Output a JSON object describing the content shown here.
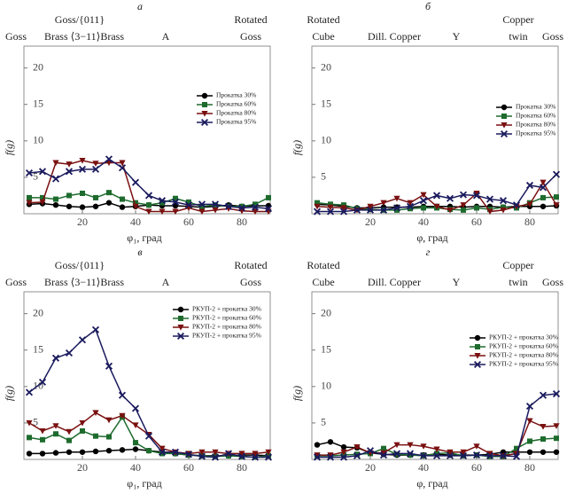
{
  "chart_data": [
    {
      "type": "line",
      "title": "а",
      "xlabel": "φ₁, град",
      "ylabel": "f(g)",
      "annotations": [
        "Goss/{011}",
        "Goss",
        "Brass ⟨3−11⟩Brass",
        "A",
        "Rotated",
        "Goss"
      ],
      "x": [
        0,
        5,
        10,
        15,
        20,
        25,
        30,
        35,
        40,
        45,
        50,
        55,
        60,
        65,
        70,
        75,
        80,
        85,
        90
      ],
      "xlim": [
        0,
        90
      ],
      "xticks": [
        20,
        40,
        60,
        80
      ],
      "ylim": [
        0,
        23
      ],
      "yticks": [
        5,
        10,
        15,
        20
      ],
      "series": [
        {
          "name": "Прокатка 30%",
          "color": "#000000",
          "marker": "circle",
          "values": [
            1.3,
            1.4,
            1.2,
            1.0,
            0.9,
            1.0,
            1.5,
            0.9,
            1.0,
            1.2,
            1.1,
            1.1,
            1.0,
            0.9,
            1.0,
            1.2,
            1.0,
            1.1,
            1.1
          ]
        },
        {
          "name": "Прокатка 60%",
          "color": "#1e6b2e",
          "marker": "square",
          "values": [
            2.2,
            2.2,
            2.0,
            2.5,
            2.8,
            2.2,
            2.9,
            2.0,
            1.5,
            1.2,
            1.5,
            2.1,
            1.6,
            1.0,
            1.2,
            1.0,
            1.0,
            1.3,
            2.2
          ]
        },
        {
          "name": "Прокатка 80%",
          "color": "#7a1010",
          "marker": "triangle",
          "values": [
            1.5,
            1.6,
            7.0,
            6.8,
            7.3,
            6.9,
            7.0,
            7.0,
            1.0,
            0.3,
            0.3,
            0.3,
            0.8,
            0.3,
            0.5,
            0.7,
            0.4,
            0.3,
            0.3
          ]
        },
        {
          "name": "Прокатка 95%",
          "color": "#1a1a5e",
          "marker": "x",
          "values": [
            5.6,
            5.8,
            4.8,
            5.8,
            6.1,
            6.1,
            7.5,
            6.3,
            4.3,
            2.5,
            1.8,
            1.6,
            1.2,
            1.3,
            1.3,
            1.0,
            0.8,
            0.9,
            0.7
          ]
        }
      ]
    },
    {
      "type": "line",
      "title": "б",
      "xlabel": "φ, град",
      "ylabel": "f(g)",
      "annotations": [
        "Rotated",
        "Cube",
        "Dill. Copper",
        "Y",
        "Copper",
        "twin",
        "Goss"
      ],
      "x": [
        0,
        5,
        10,
        15,
        20,
        25,
        30,
        35,
        40,
        45,
        50,
        55,
        60,
        65,
        70,
        75,
        80,
        85,
        90
      ],
      "xlim": [
        0,
        90
      ],
      "xticks": [
        20,
        40,
        60,
        80
      ],
      "ylim": [
        0,
        23
      ],
      "yticks": [
        5,
        10,
        15,
        20
      ],
      "series": [
        {
          "name": "Прокатка 30%",
          "color": "#000000",
          "marker": "circle",
          "values": [
            1.3,
            1.2,
            1.0,
            0.8,
            0.8,
            0.9,
            0.9,
            0.9,
            1.0,
            1.0,
            1.0,
            0.9,
            1.0,
            1.0,
            0.9,
            1.0,
            1.0,
            1.0,
            1.1
          ]
        },
        {
          "name": "Прокатка 60%",
          "color": "#1e6b2e",
          "marker": "square",
          "values": [
            1.5,
            1.3,
            1.2,
            0.7,
            0.6,
            0.5,
            0.5,
            0.7,
            0.8,
            0.8,
            0.6,
            0.5,
            0.8,
            0.6,
            0.9,
            0.8,
            1.5,
            2.2,
            2.3
          ]
        },
        {
          "name": "Прокатка 80%",
          "color": "#7a1010",
          "marker": "triangle",
          "values": [
            1.0,
            0.9,
            0.8,
            0.5,
            1.0,
            1.5,
            2.1,
            1.5,
            2.6,
            1.0,
            0.5,
            1.2,
            2.8,
            0.3,
            0.5,
            1.0,
            1.3,
            4.3,
            1.2
          ]
        },
        {
          "name": "Прокатка 95%",
          "color": "#1a1a5e",
          "marker": "x",
          "values": [
            0.3,
            0.3,
            0.3,
            0.5,
            0.5,
            0.5,
            0.8,
            1.0,
            1.8,
            2.5,
            2.1,
            2.6,
            2.5,
            2.0,
            1.8,
            1.2,
            3.9,
            3.6,
            5.4
          ]
        }
      ]
    },
    {
      "type": "line",
      "title": "в",
      "xlabel": "φ₁, град",
      "ylabel": "f(g)",
      "annotations": [
        "Goss/{011}",
        "Goss",
        "Brass ⟨3−11⟩Brass",
        "A",
        "Rotated",
        "Goss"
      ],
      "x": [
        0,
        5,
        10,
        15,
        20,
        25,
        30,
        35,
        40,
        45,
        50,
        55,
        60,
        65,
        70,
        75,
        80,
        85,
        90
      ],
      "xlim": [
        0,
        90
      ],
      "xticks": [
        20,
        40,
        60,
        80
      ],
      "ylim": [
        0,
        23
      ],
      "yticks": [
        5,
        10,
        15,
        20
      ],
      "series": [
        {
          "name": "РКУП-2 + прокатка 30%",
          "color": "#000000",
          "marker": "circle",
          "values": [
            0.8,
            0.8,
            0.9,
            1.0,
            1.0,
            1.1,
            1.2,
            1.3,
            1.4,
            1.2,
            1.0,
            0.8,
            0.6,
            0.5,
            0.5,
            0.5,
            0.6,
            0.6,
            0.5
          ]
        },
        {
          "name": "РКУП-2 + прокатка 60%",
          "color": "#1e6b2e",
          "marker": "square",
          "values": [
            3.0,
            2.7,
            3.5,
            2.6,
            3.9,
            3.2,
            3.1,
            5.8,
            2.3,
            1.2,
            0.8,
            0.8,
            0.6,
            0.5,
            0.4,
            0.5,
            0.4,
            0.3,
            0.5
          ]
        },
        {
          "name": "РКУП-2 + прокатка 80%",
          "color": "#7a1010",
          "marker": "triangle",
          "values": [
            5.0,
            3.9,
            4.6,
            3.8,
            5.0,
            6.4,
            5.4,
            6.0,
            4.7,
            3.4,
            1.5,
            1.0,
            0.8,
            1.0,
            1.0,
            0.8,
            0.8,
            0.8,
            1.0
          ]
        },
        {
          "name": "РКУП-2 + прокатка 95%",
          "color": "#1a1a5e",
          "marker": "x",
          "values": [
            9.2,
            10.6,
            13.9,
            14.6,
            16.4,
            17.8,
            12.8,
            8.8,
            7.0,
            3.2,
            1.0,
            1.0,
            0.7,
            0.4,
            0.3,
            0.8,
            0.4,
            0.3,
            0.3
          ]
        }
      ]
    },
    {
      "type": "line",
      "title": "г",
      "xlabel": "φ, град",
      "ylabel": "f(g)",
      "annotations": [
        "Rotated",
        "Cube",
        "Dill. Copper",
        "Y",
        "Copper",
        "twin",
        "Goss"
      ],
      "x": [
        0,
        5,
        10,
        15,
        20,
        25,
        30,
        35,
        40,
        45,
        50,
        55,
        60,
        65,
        70,
        75,
        80,
        85,
        90
      ],
      "xlim": [
        0,
        90
      ],
      "xticks": [
        20,
        40,
        60,
        80
      ],
      "ylim": [
        0,
        23
      ],
      "yticks": [
        5,
        10,
        15,
        20
      ],
      "series": [
        {
          "name": "РКУП-2 + прокатка 30%",
          "color": "#000000",
          "marker": "circle",
          "values": [
            2.0,
            2.4,
            1.7,
            1.6,
            0.9,
            0.7,
            0.6,
            0.6,
            0.6,
            0.7,
            0.6,
            0.6,
            0.6,
            0.7,
            1.0,
            1.0,
            1.0,
            1.0,
            1.0
          ]
        },
        {
          "name": "РКУП-2 + прокатка 60%",
          "color": "#1e6b2e",
          "marker": "square",
          "values": [
            0.5,
            0.5,
            0.6,
            0.7,
            0.8,
            1.5,
            0.7,
            0.6,
            0.5,
            0.8,
            0.9,
            0.5,
            0.6,
            0.4,
            0.4,
            1.5,
            2.5,
            2.8,
            2.9
          ]
        },
        {
          "name": "РКУП-2 + прокатка 80%",
          "color": "#7a1010",
          "marker": "triangle",
          "values": [
            0.6,
            0.6,
            1.0,
            1.7,
            0.9,
            0.9,
            2.0,
            2.0,
            1.8,
            1.4,
            1.0,
            1.0,
            1.8,
            0.8,
            0.5,
            0.8,
            5.3,
            4.5,
            4.6
          ]
        },
        {
          "name": "РКУП-2 + прокатка 95%",
          "color": "#1a1a5e",
          "marker": "x",
          "values": [
            0.3,
            0.3,
            0.3,
            0.5,
            1.2,
            0.6,
            0.8,
            0.8,
            0.5,
            0.5,
            0.5,
            0.5,
            0.6,
            0.5,
            0.5,
            0.4,
            7.3,
            8.8,
            9.0
          ]
        }
      ]
    }
  ]
}
